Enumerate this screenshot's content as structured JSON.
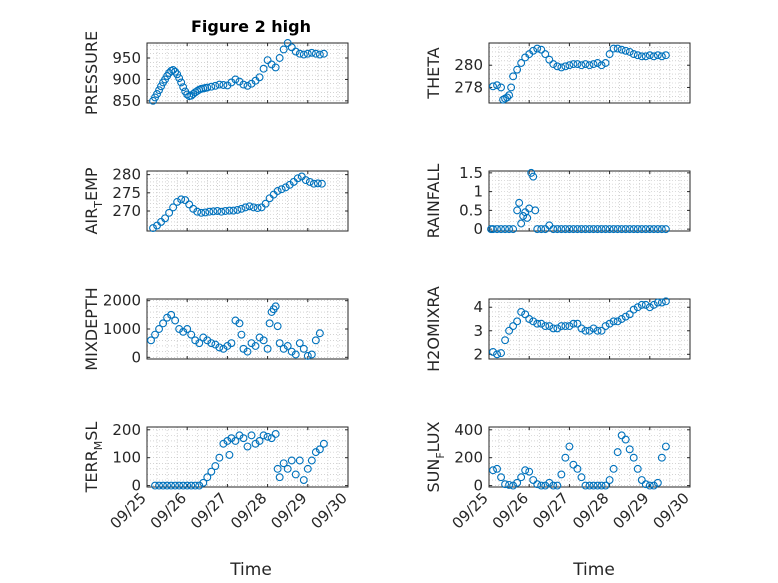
{
  "figure": {
    "title": "Figure 2 high",
    "xlabel": "Time"
  },
  "colors": {
    "marker": "#0072BD",
    "axis": "#262626",
    "grid": "#b9b9b9"
  },
  "x_ticks": [
    "09/25",
    "09/26",
    "09/27",
    "09/28",
    "09/29",
    "09/30"
  ],
  "chart_data": [
    {
      "type": "scatter",
      "ylabel": "PRESSURE",
      "ylim": [
        845,
        985
      ],
      "yticks": [
        "850",
        "900",
        "950"
      ],
      "yticks_num": [
        850,
        900,
        950
      ],
      "x": [
        0.15,
        0.2,
        0.25,
        0.3,
        0.35,
        0.4,
        0.45,
        0.5,
        0.55,
        0.6,
        0.65,
        0.7,
        0.75,
        0.8,
        0.85,
        0.9,
        0.95,
        1.0,
        1.05,
        1.1,
        1.15,
        1.2,
        1.25,
        1.3,
        1.35,
        1.4,
        1.45,
        1.5,
        1.6,
        1.7,
        1.8,
        1.9,
        2.0,
        2.1,
        2.2,
        2.3,
        2.4,
        2.5,
        2.6,
        2.7,
        2.8,
        2.9,
        3.0,
        3.1,
        3.2,
        3.3,
        3.4,
        3.5,
        3.6,
        3.7,
        3.8,
        3.9,
        4.0,
        4.1,
        4.2,
        4.3,
        4.4
      ],
      "y": [
        850,
        858,
        866,
        875,
        884,
        893,
        900,
        908,
        915,
        920,
        922,
        918,
        912,
        903,
        893,
        882,
        872,
        865,
        861,
        862,
        866,
        870,
        873,
        876,
        878,
        879,
        880,
        881,
        883,
        885,
        888,
        887,
        886,
        893,
        900,
        895,
        888,
        885,
        890,
        897,
        905,
        925,
        945,
        935,
        928,
        950,
        970,
        985,
        975,
        965,
        960,
        958,
        960,
        962,
        960,
        958,
        960
      ]
    },
    {
      "type": "scatter",
      "ylabel": "THETA",
      "ylim": [
        276.6,
        282.0
      ],
      "yticks": [
        "278",
        "280"
      ],
      "yticks_num": [
        278,
        280
      ],
      "x": [
        0.1,
        0.2,
        0.3,
        0.35,
        0.4,
        0.45,
        0.5,
        0.55,
        0.6,
        0.7,
        0.8,
        0.9,
        1.0,
        1.1,
        1.2,
        1.3,
        1.4,
        1.5,
        1.6,
        1.7,
        1.8,
        1.9,
        2.0,
        2.1,
        2.2,
        2.3,
        2.4,
        2.5,
        2.6,
        2.7,
        2.8,
        2.9,
        3.0,
        3.1,
        3.2,
        3.3,
        3.4,
        3.5,
        3.6,
        3.7,
        3.8,
        3.9,
        4.0,
        4.1,
        4.2,
        4.3,
        4.4
      ],
      "y": [
        278.1,
        278.2,
        278.0,
        276.9,
        277.0,
        277.1,
        277.3,
        278.0,
        279.0,
        279.6,
        280.2,
        280.7,
        281.0,
        281.3,
        281.5,
        281.4,
        281.0,
        280.5,
        280.1,
        279.9,
        279.8,
        279.9,
        280.0,
        280.1,
        280.1,
        280.0,
        280.1,
        280.0,
        280.1,
        280.2,
        280.0,
        280.2,
        281.0,
        281.5,
        281.5,
        281.4,
        281.3,
        281.2,
        281.0,
        280.9,
        280.8,
        280.8,
        280.9,
        280.8,
        280.9,
        280.8,
        280.9
      ]
    },
    {
      "type": "scatter",
      "ylabel": "AIR_TEMP",
      "ylim": [
        264.5,
        281.0
      ],
      "yticks": [
        "270",
        "275",
        "280"
      ],
      "yticks_num": [
        270,
        275,
        280
      ],
      "x": [
        0.15,
        0.25,
        0.35,
        0.45,
        0.55,
        0.65,
        0.75,
        0.85,
        0.95,
        1.05,
        1.15,
        1.25,
        1.35,
        1.45,
        1.55,
        1.65,
        1.75,
        1.85,
        1.95,
        2.05,
        2.15,
        2.25,
        2.35,
        2.45,
        2.55,
        2.65,
        2.75,
        2.85,
        2.95,
        3.05,
        3.15,
        3.25,
        3.35,
        3.45,
        3.55,
        3.65,
        3.75,
        3.85,
        3.95,
        4.05,
        4.15,
        4.25,
        4.35
      ],
      "y": [
        265.3,
        266.0,
        267.0,
        268.0,
        269.5,
        271.0,
        272.5,
        273.2,
        273.0,
        271.8,
        270.6,
        269.8,
        269.5,
        269.6,
        269.8,
        269.9,
        270.0,
        269.8,
        270.0,
        270.1,
        270.1,
        270.3,
        270.6,
        271.0,
        271.3,
        271.0,
        270.8,
        271.0,
        272.0,
        273.5,
        274.5,
        275.5,
        276.0,
        276.5,
        277.2,
        278.0,
        279.0,
        279.5,
        278.5,
        278.0,
        277.5,
        277.6,
        277.5
      ]
    },
    {
      "type": "scatter",
      "ylabel": "RAINFALL",
      "ylim": [
        -0.05,
        1.55
      ],
      "yticks": [
        "0",
        "0.5",
        "1",
        "1.5"
      ],
      "yticks_num": [
        0,
        0.5,
        1,
        1.5
      ],
      "x": [
        0.05,
        0.1,
        0.2,
        0.3,
        0.4,
        0.5,
        0.6,
        0.7,
        0.75,
        0.8,
        0.85,
        0.9,
        0.95,
        1.0,
        1.05,
        1.1,
        1.15,
        1.2,
        1.3,
        1.4,
        1.5,
        1.6,
        1.7,
        1.8,
        1.9,
        2.0,
        2.1,
        2.2,
        2.3,
        2.4,
        2.5,
        2.6,
        2.7,
        2.8,
        2.9,
        3.0,
        3.1,
        3.2,
        3.3,
        3.4,
        3.5,
        3.6,
        3.7,
        3.8,
        3.9,
        4.0,
        4.1,
        4.2,
        4.3,
        4.4
      ],
      "y": [
        0,
        0,
        0,
        0,
        0,
        0,
        0,
        0.5,
        0.7,
        0.15,
        0.35,
        0.45,
        0.3,
        0.55,
        1.5,
        1.4,
        0.5,
        0,
        0,
        0,
        0.1,
        0,
        0,
        0,
        0,
        0,
        0,
        0,
        0,
        0,
        0,
        0,
        0,
        0,
        0,
        0,
        0,
        0,
        0,
        0,
        0,
        0,
        0,
        0,
        0,
        0,
        0,
        0,
        0,
        0
      ]
    },
    {
      "type": "scatter",
      "ylabel": "MIXDEPTH",
      "ylim": [
        -60,
        2060
      ],
      "yticks": [
        "0",
        "1000",
        "2000"
      ],
      "yticks_num": [
        0,
        1000,
        2000
      ],
      "x": [
        0.1,
        0.2,
        0.3,
        0.4,
        0.5,
        0.6,
        0.7,
        0.8,
        0.9,
        1.0,
        1.1,
        1.2,
        1.3,
        1.4,
        1.5,
        1.6,
        1.7,
        1.8,
        1.9,
        2.0,
        2.1,
        2.2,
        2.3,
        2.35,
        2.4,
        2.5,
        2.6,
        2.7,
        2.8,
        2.9,
        3.0,
        3.05,
        3.1,
        3.15,
        3.2,
        3.25,
        3.3,
        3.4,
        3.5,
        3.6,
        3.7,
        3.8,
        3.9,
        4.0,
        4.1,
        4.2,
        4.3
      ],
      "y": [
        600,
        800,
        1000,
        1200,
        1400,
        1500,
        1300,
        1000,
        900,
        1000,
        800,
        600,
        500,
        700,
        600,
        500,
        450,
        350,
        300,
        400,
        500,
        1300,
        1200,
        800,
        300,
        200,
        500,
        400,
        700,
        600,
        300,
        1200,
        1600,
        1700,
        1800,
        1100,
        500,
        300,
        400,
        200,
        100,
        500,
        300,
        50,
        100,
        600,
        850
      ]
    },
    {
      "type": "scatter",
      "ylabel": "H2OMIXRA",
      "ylim": [
        1.8,
        4.35
      ],
      "yticks": [
        "2",
        "3",
        "4"
      ],
      "yticks_num": [
        2,
        3,
        4
      ],
      "x": [
        0.1,
        0.2,
        0.3,
        0.4,
        0.5,
        0.6,
        0.7,
        0.8,
        0.9,
        1.0,
        1.1,
        1.2,
        1.3,
        1.4,
        1.5,
        1.6,
        1.7,
        1.8,
        1.9,
        2.0,
        2.1,
        2.2,
        2.3,
        2.4,
        2.5,
        2.6,
        2.7,
        2.8,
        2.9,
        3.0,
        3.1,
        3.2,
        3.3,
        3.4,
        3.5,
        3.6,
        3.7,
        3.8,
        3.9,
        4.0,
        4.1,
        4.2,
        4.3,
        4.4
      ],
      "y": [
        2.1,
        2.0,
        2.05,
        2.6,
        3.0,
        3.2,
        3.4,
        3.8,
        3.7,
        3.5,
        3.4,
        3.3,
        3.3,
        3.2,
        3.2,
        3.1,
        3.1,
        3.2,
        3.2,
        3.2,
        3.3,
        3.3,
        3.1,
        3.0,
        3.0,
        3.1,
        3.0,
        3.0,
        3.2,
        3.3,
        3.4,
        3.4,
        3.5,
        3.6,
        3.7,
        3.9,
        4.0,
        4.1,
        4.1,
        4.0,
        4.1,
        4.2,
        4.2,
        4.25
      ]
    },
    {
      "type": "scatter",
      "ylabel": "TERR_MSL",
      "ylim": [
        -5,
        210
      ],
      "yticks": [
        "0",
        "100",
        "200"
      ],
      "yticks_num": [
        0,
        100,
        200
      ],
      "x": [
        0.2,
        0.3,
        0.4,
        0.5,
        0.6,
        0.7,
        0.8,
        0.9,
        1.0,
        1.1,
        1.2,
        1.3,
        1.4,
        1.5,
        1.6,
        1.7,
        1.8,
        1.9,
        2.0,
        2.05,
        2.1,
        2.2,
        2.3,
        2.4,
        2.5,
        2.6,
        2.7,
        2.8,
        2.9,
        3.0,
        3.1,
        3.2,
        3.25,
        3.3,
        3.4,
        3.5,
        3.6,
        3.7,
        3.8,
        3.9,
        4.0,
        4.1,
        4.2,
        4.3,
        4.4
      ],
      "y": [
        0,
        0,
        0,
        0,
        0,
        0,
        0,
        0,
        0,
        0,
        0,
        0,
        10,
        30,
        50,
        70,
        100,
        150,
        160,
        110,
        170,
        160,
        180,
        170,
        140,
        180,
        150,
        160,
        180,
        175,
        170,
        185,
        60,
        30,
        80,
        60,
        90,
        40,
        90,
        20,
        60,
        90,
        120,
        130,
        150
      ]
    },
    {
      "type": "scatter",
      "ylabel": "SUN_FLUX",
      "ylim": [
        -10,
        420
      ],
      "yticks": [
        "0",
        "200",
        "400"
      ],
      "yticks_num": [
        0,
        200,
        400
      ],
      "x": [
        0.1,
        0.2,
        0.3,
        0.4,
        0.5,
        0.6,
        0.7,
        0.8,
        0.9,
        1.0,
        1.1,
        1.2,
        1.3,
        1.4,
        1.5,
        1.6,
        1.7,
        1.8,
        1.9,
        2.0,
        2.1,
        2.2,
        2.3,
        2.4,
        2.5,
        2.6,
        2.7,
        2.8,
        2.9,
        3.0,
        3.1,
        3.2,
        3.3,
        3.4,
        3.5,
        3.6,
        3.7,
        3.8,
        3.9,
        4.0,
        4.1,
        4.2,
        4.3,
        4.4
      ],
      "y": [
        110,
        120,
        60,
        10,
        5,
        0,
        20,
        60,
        110,
        100,
        40,
        10,
        0,
        0,
        20,
        0,
        0,
        80,
        200,
        280,
        150,
        120,
        60,
        0,
        0,
        0,
        0,
        0,
        0,
        40,
        120,
        240,
        360,
        330,
        260,
        200,
        120,
        40,
        10,
        0,
        0,
        20,
        200,
        280
      ]
    }
  ]
}
